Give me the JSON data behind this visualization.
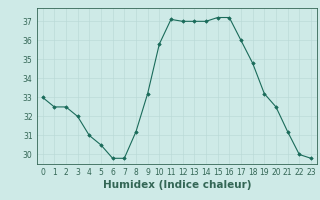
{
  "x": [
    0,
    1,
    2,
    3,
    4,
    5,
    6,
    7,
    8,
    9,
    10,
    11,
    12,
    13,
    14,
    15,
    16,
    17,
    18,
    19,
    20,
    21,
    22,
    23
  ],
  "y": [
    33,
    32.5,
    32.5,
    32,
    31,
    30.5,
    29.8,
    29.8,
    31.2,
    33.2,
    35.8,
    37.1,
    37,
    37,
    37,
    37.2,
    37.2,
    36,
    34.8,
    33.2,
    32.5,
    31.2,
    30,
    29.8
  ],
  "line_color": "#1a6b5a",
  "marker": "D",
  "marker_size": 1.8,
  "bg_color": "#ceeae7",
  "grid_color": "#b8d8d5",
  "xlabel": "Humidex (Indice chaleur)",
  "ylim": [
    29.5,
    37.7
  ],
  "yticks": [
    30,
    31,
    32,
    33,
    34,
    35,
    36,
    37
  ],
  "xlim": [
    -0.5,
    23.5
  ],
  "xticks": [
    0,
    1,
    2,
    3,
    4,
    5,
    6,
    7,
    8,
    9,
    10,
    11,
    12,
    13,
    14,
    15,
    16,
    17,
    18,
    19,
    20,
    21,
    22,
    23
  ],
  "tick_fontsize": 5.5,
  "xlabel_fontsize": 7.5,
  "spine_color": "#336655"
}
